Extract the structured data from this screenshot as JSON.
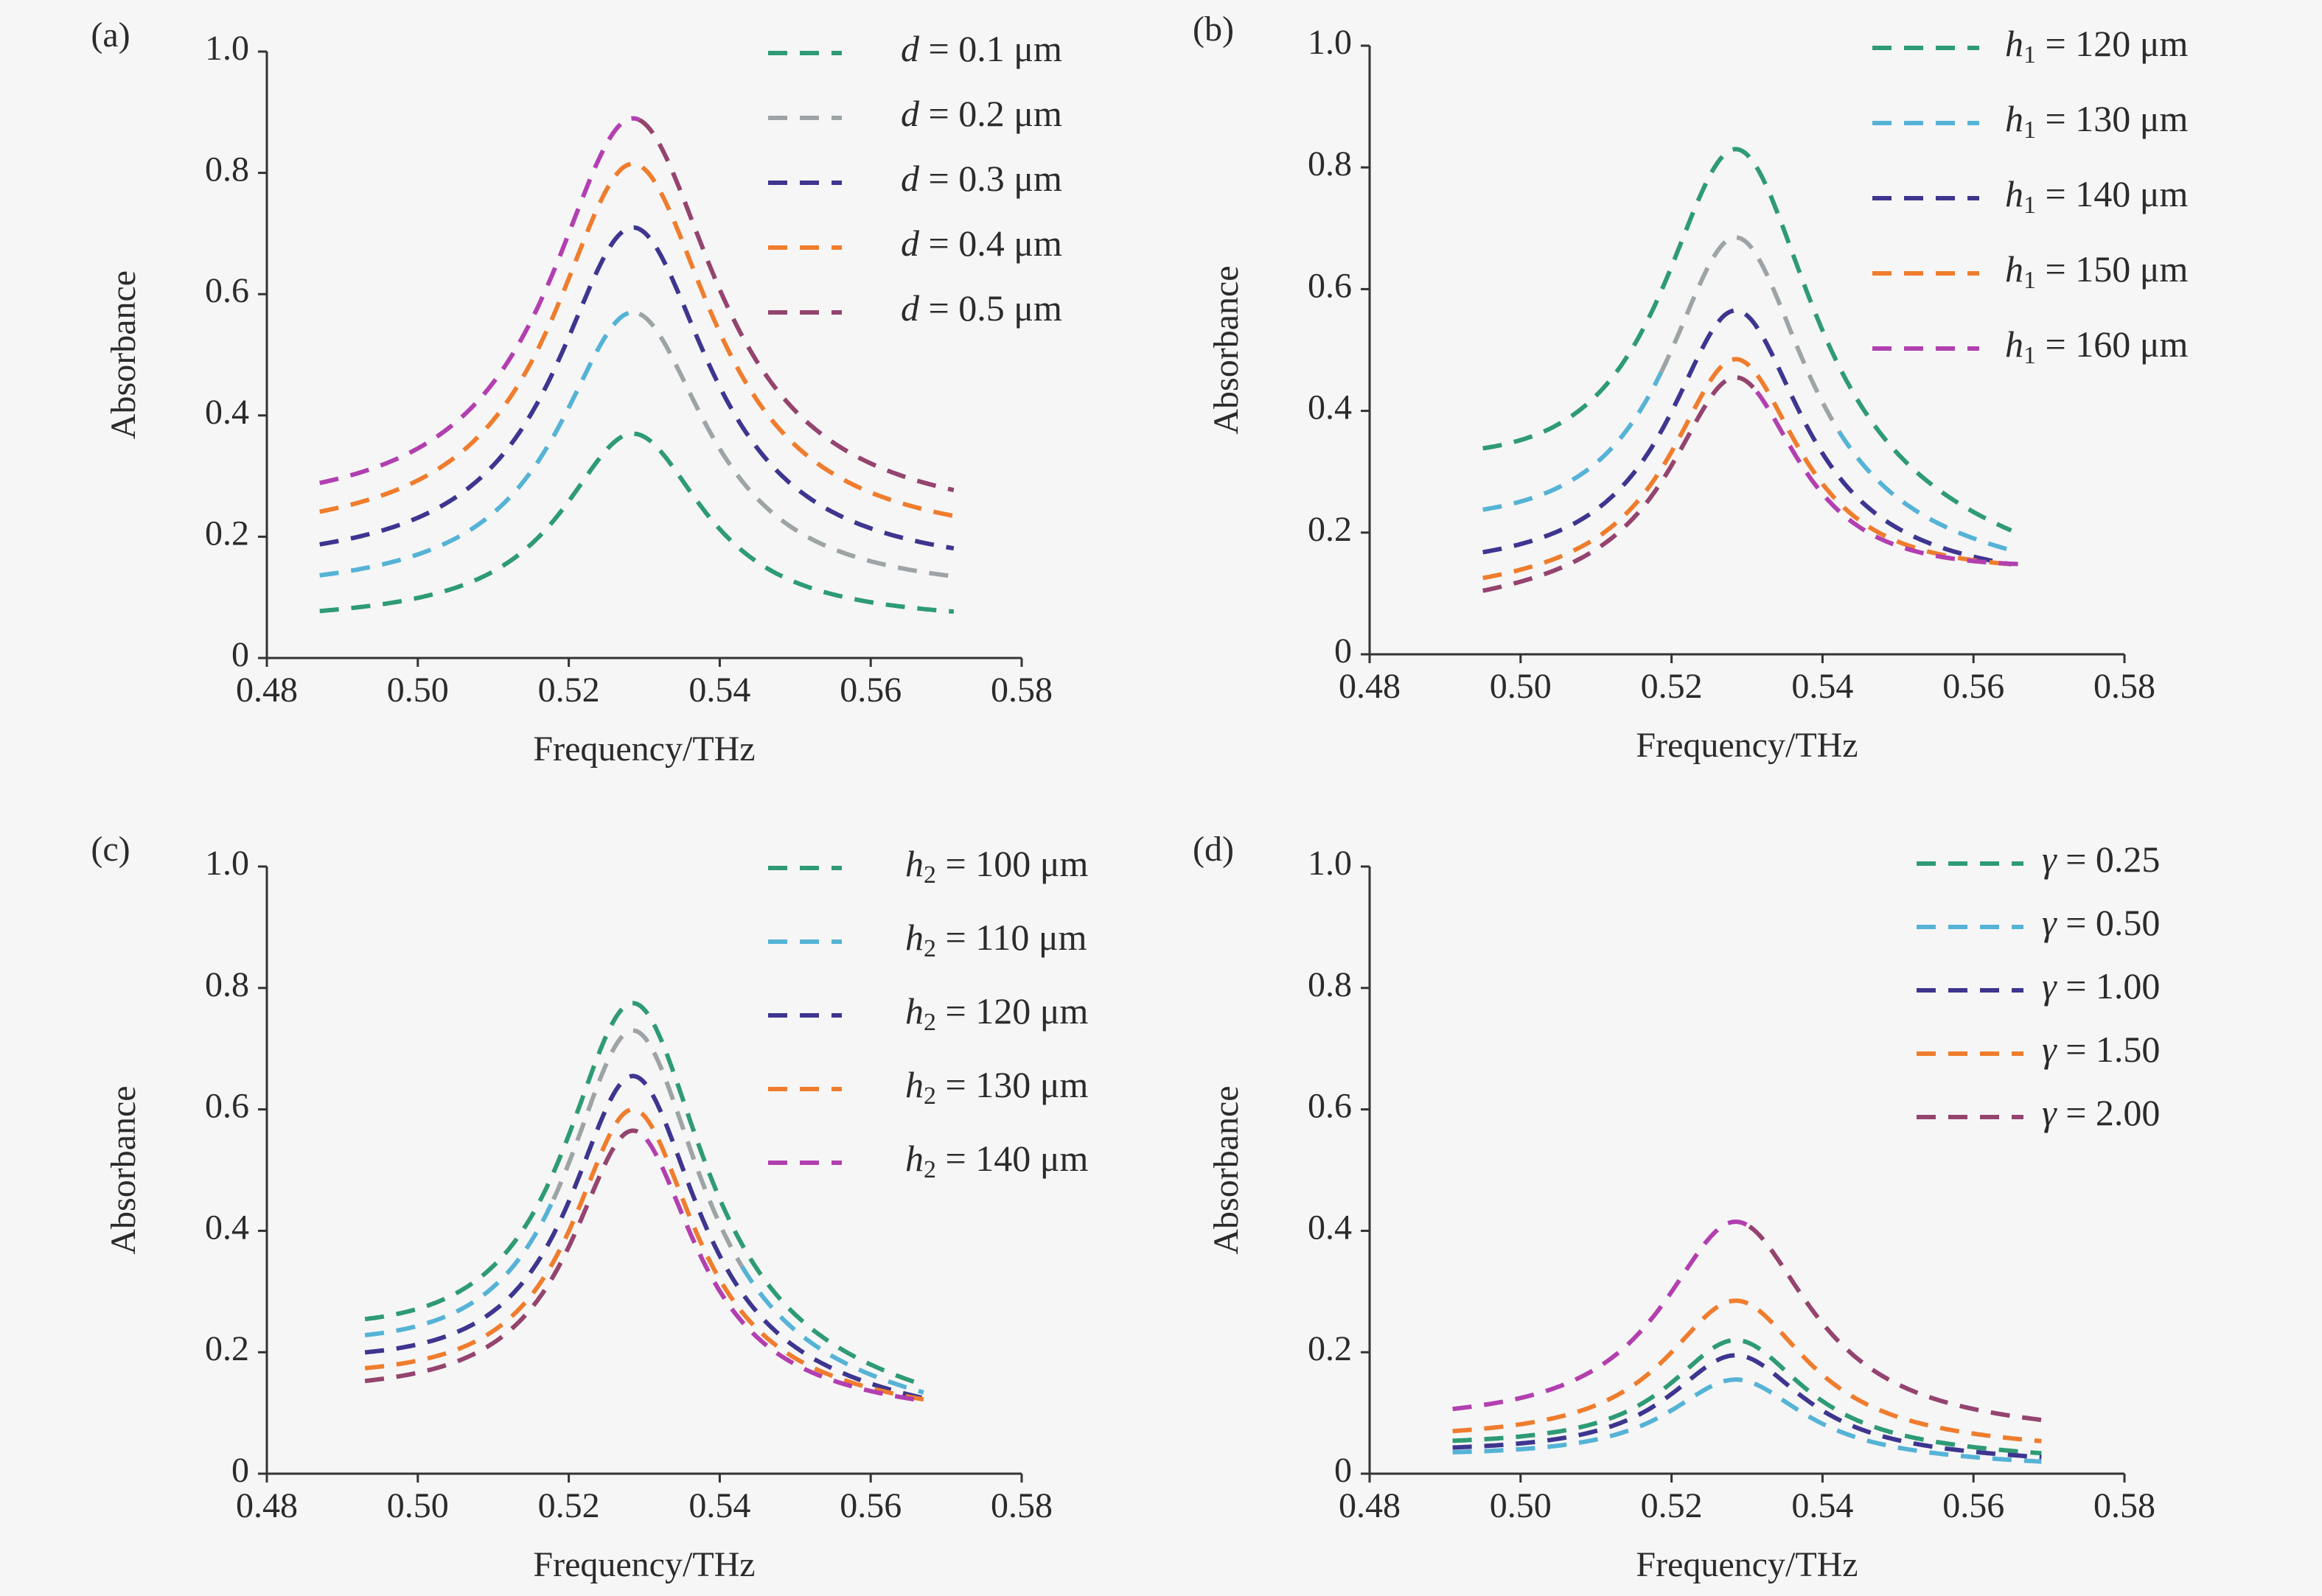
{
  "chart_data": [
    {
      "panel": "(a)",
      "type": "line",
      "xlabel": "Frequency/THz",
      "ylabel": "Absorbance",
      "xlim": [
        0.48,
        0.58
      ],
      "ylim": [
        0,
        1.0
      ],
      "xticks": [
        0.48,
        0.5,
        0.52,
        0.54,
        0.56,
        0.58
      ],
      "xtick_labels": [
        "0.48",
        "0.50",
        "0.52",
        "0.54",
        "0.56",
        "0.58"
      ],
      "yticks": [
        0,
        0.2,
        0.4,
        0.6,
        0.8,
        1.0
      ],
      "ytick_labels": [
        "0",
        "0.2",
        "0.4",
        "0.6",
        "0.8",
        "1.0"
      ],
      "legend_position": "top-right",
      "series": [
        {
          "legend": {
            "sym": "d",
            "sub": "",
            "rest": " = 0.1 μm"
          },
          "color": "#2e9b74",
          "peak": 0.37,
          "x0": 0.487,
          "x1": 0.571,
          "y0": 0.055,
          "y1": 0.055,
          "w": 0.0115
        },
        {
          "legend": {
            "sym": "d",
            "sub": "",
            "rest": " = 0.2 μm"
          },
          "color": "#9ea3a6",
          "peak": 0.57,
          "x0": 0.487,
          "x1": 0.571,
          "y0": 0.1,
          "y1": 0.1,
          "w": 0.012,
          "colors": [
            "#55b3d6",
            "#9ea3a6"
          ]
        },
        {
          "legend": {
            "sym": "d",
            "sub": "",
            "rest": " = 0.3 μm"
          },
          "color": "#3e3590",
          "peak": 0.71,
          "x0": 0.487,
          "x1": 0.571,
          "y0": 0.14,
          "y1": 0.135,
          "w": 0.0125
        },
        {
          "legend": {
            "sym": "d",
            "sub": "",
            "rest": " = 0.4 μm"
          },
          "color": "#ef7d2d",
          "peak": 0.815,
          "x0": 0.487,
          "x1": 0.571,
          "y0": 0.185,
          "y1": 0.18,
          "w": 0.013
        },
        {
          "legend": {
            "sym": "d",
            "sub": "",
            "rest": " = 0.5 μm"
          },
          "color": "#94446e",
          "peak": 0.89,
          "x0": 0.487,
          "x1": 0.571,
          "y0": 0.225,
          "y1": 0.215,
          "w": 0.0135,
          "colors": [
            "#b23fb0",
            "#94446e"
          ]
        }
      ]
    },
    {
      "panel": "(b)",
      "type": "line",
      "xlabel": "Frequency/THz",
      "ylabel": "Absorbance",
      "xlim": [
        0.48,
        0.58
      ],
      "ylim": [
        0,
        1.0
      ],
      "xticks": [
        0.48,
        0.5,
        0.52,
        0.54,
        0.56,
        0.58
      ],
      "xtick_labels": [
        "0.48",
        "0.50",
        "0.52",
        "0.54",
        "0.56",
        "0.58"
      ],
      "yticks": [
        0,
        0.2,
        0.4,
        0.6,
        0.8,
        1.0
      ],
      "ytick_labels": [
        "0",
        "0.2",
        "0.4",
        "0.6",
        "0.8",
        "1.0"
      ],
      "legend_position": "top-right",
      "series": [
        {
          "legend": {
            "sym": "h",
            "sub": "1",
            "rest": " = 120 μm"
          },
          "color": "#2e9b74",
          "peak": 0.83,
          "x0": 0.495,
          "x1": 0.565,
          "y0": 0.27,
          "y1": 0.13,
          "w": 0.0125
        },
        {
          "legend": {
            "sym": "h",
            "sub": "1",
            "rest": " = 130 μm"
          },
          "color": "#55b3d6",
          "peak": 0.685,
          "x0": 0.495,
          "x1": 0.565,
          "y0": 0.185,
          "y1": 0.12,
          "w": 0.0115,
          "colors": [
            "#55b3d6",
            "#9ea3a6",
            "#55b3d6"
          ]
        },
        {
          "legend": {
            "sym": "h",
            "sub": "1",
            "rest": " = 140 μm"
          },
          "color": "#3e3590",
          "peak": 0.565,
          "x0": 0.495,
          "x1": 0.565,
          "y0": 0.125,
          "y1": 0.11,
          "w": 0.011
        },
        {
          "legend": {
            "sym": "h",
            "sub": "1",
            "rest": " = 150 μm"
          },
          "color": "#ef7d2d",
          "peak": 0.485,
          "x0": 0.495,
          "x1": 0.565,
          "y0": 0.09,
          "y1": 0.12,
          "w": 0.0105
        },
        {
          "legend": {
            "sym": "h",
            "sub": "1",
            "rest": " = 160 μm"
          },
          "color": "#b23fb0",
          "peak": 0.455,
          "x0": 0.495,
          "x1": 0.567,
          "y0": 0.07,
          "y1": 0.125,
          "w": 0.0105,
          "colors": [
            "#94446e",
            "#b23fb0"
          ]
        }
      ]
    },
    {
      "panel": "(c)",
      "type": "line",
      "xlabel": "Frequency/THz",
      "ylabel": "Absorbance",
      "xlim": [
        0.48,
        0.58
      ],
      "ylim": [
        0,
        1.0
      ],
      "xticks": [
        0.48,
        0.5,
        0.52,
        0.54,
        0.56,
        0.58
      ],
      "xtick_labels": [
        "0.48",
        "0.50",
        "0.52",
        "0.54",
        "0.56",
        "0.58"
      ],
      "yticks": [
        0,
        0.2,
        0.4,
        0.6,
        0.8,
        1.0
      ],
      "ytick_labels": [
        "0",
        "0.2",
        "0.4",
        "0.6",
        "0.8",
        "1.0"
      ],
      "legend_position": "top-right",
      "series": [
        {
          "legend": {
            "sym": "h",
            "sub": "2",
            "rest": " = 100 μm"
          },
          "color": "#2e9b74",
          "peak": 0.775,
          "x0": 0.493,
          "x1": 0.567,
          "y0": 0.2,
          "y1": 0.09,
          "w": 0.0115
        },
        {
          "legend": {
            "sym": "h",
            "sub": "2",
            "rest": " = 110 μm"
          },
          "color": "#55b3d6",
          "peak": 0.73,
          "x0": 0.493,
          "x1": 0.567,
          "y0": 0.18,
          "y1": 0.085,
          "w": 0.011,
          "colors": [
            "#55b3d6",
            "#9ea3a6",
            "#55b3d6"
          ]
        },
        {
          "legend": {
            "sym": "h",
            "sub": "2",
            "rest": " = 120 μm"
          },
          "color": "#3e3590",
          "peak": 0.655,
          "x0": 0.493,
          "x1": 0.567,
          "y0": 0.16,
          "y1": 0.085,
          "w": 0.0105
        },
        {
          "legend": {
            "sym": "h",
            "sub": "2",
            "rest": " = 130 μm"
          },
          "color": "#ef7d2d",
          "peak": 0.6,
          "x0": 0.493,
          "x1": 0.567,
          "y0": 0.14,
          "y1": 0.09,
          "w": 0.01
        },
        {
          "legend": {
            "sym": "h",
            "sub": "2",
            "rest": " = 140 μm"
          },
          "color": "#b23fb0",
          "peak": 0.565,
          "x0": 0.493,
          "x1": 0.567,
          "y0": 0.12,
          "y1": 0.09,
          "w": 0.01,
          "colors": [
            "#94446e",
            "#b23fb0"
          ]
        }
      ]
    },
    {
      "panel": "(d)",
      "type": "line",
      "xlabel": "Frequency/THz",
      "ylabel": "Absorbance",
      "xlim": [
        0.48,
        0.58
      ],
      "ylim": [
        0,
        1.0
      ],
      "xticks": [
        0.48,
        0.5,
        0.52,
        0.54,
        0.56,
        0.58
      ],
      "xtick_labels": [
        "0.48",
        "0.50",
        "0.52",
        "0.54",
        "0.56",
        "0.58"
      ],
      "yticks": [
        0,
        0.2,
        0.4,
        0.6,
        0.8,
        1.0
      ],
      "ytick_labels": [
        "0",
        "0.2",
        "0.4",
        "0.6",
        "0.8",
        "1.0"
      ],
      "legend_position": "top-right",
      "series": [
        {
          "legend": {
            "sym": "γ",
            "sub": "",
            "rest": " = 0.25"
          },
          "color": "#2e9b74",
          "peak": 0.22,
          "x0": 0.491,
          "x1": 0.569,
          "y0": 0.04,
          "y1": 0.02,
          "w": 0.011
        },
        {
          "legend": {
            "sym": "γ",
            "sub": "",
            "rest": " = 0.50"
          },
          "color": "#55b3d6",
          "peak": 0.155,
          "x0": 0.491,
          "x1": 0.569,
          "y0": 0.025,
          "y1": 0.01,
          "w": 0.011
        },
        {
          "legend": {
            "sym": "γ",
            "sub": "",
            "rest": " = 1.00"
          },
          "color": "#3e3590",
          "peak": 0.195,
          "x0": 0.491,
          "x1": 0.569,
          "y0": 0.03,
          "y1": 0.015,
          "w": 0.011
        },
        {
          "legend": {
            "sym": "γ",
            "sub": "",
            "rest": " = 1.50"
          },
          "color": "#ef7d2d",
          "peak": 0.285,
          "x0": 0.491,
          "x1": 0.569,
          "y0": 0.05,
          "y1": 0.035,
          "w": 0.0115
        },
        {
          "legend": {
            "sym": "γ",
            "sub": "",
            "rest": " = 2.00"
          },
          "color": "#94446e",
          "peak": 0.415,
          "x0": 0.491,
          "x1": 0.569,
          "y0": 0.075,
          "y1": 0.06,
          "w": 0.012,
          "colors": [
            "#b23fb0",
            "#94446e"
          ]
        }
      ]
    }
  ]
}
